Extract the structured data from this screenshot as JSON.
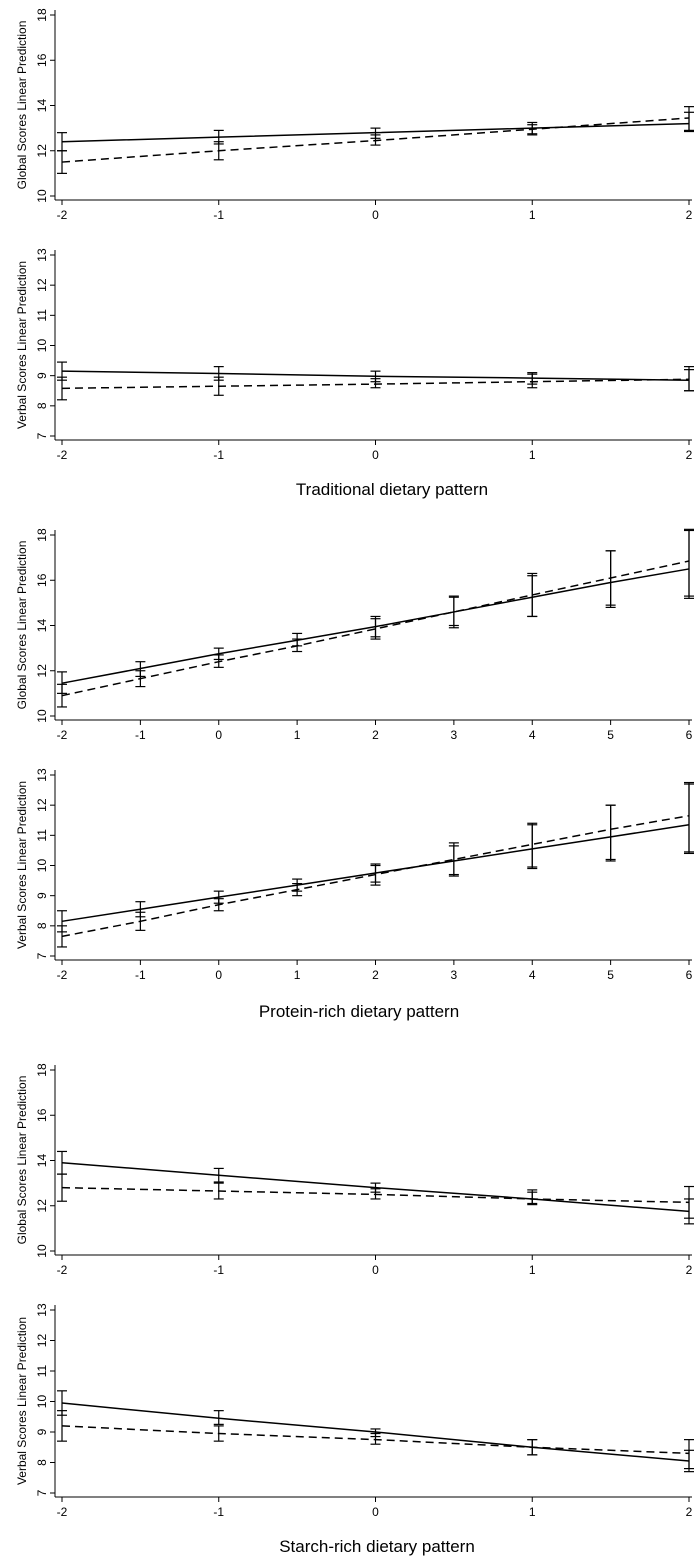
{
  "sections": [
    {
      "title": "Traditional dietary pattern",
      "plots": [
        {
          "ylabel": "Global Scores Linear Prediction",
          "xticks": [
            -2,
            -1,
            0,
            1,
            2
          ],
          "yticks": [
            10,
            12,
            14,
            16,
            18
          ]
        },
        {
          "ylabel": "Verbal Scores Linear Prediction",
          "xticks": [
            -2,
            -1,
            0,
            1,
            2
          ],
          "yticks": [
            7,
            8,
            9,
            10,
            11,
            12,
            13
          ]
        }
      ]
    },
    {
      "title": "Protein-rich dietary pattern",
      "plots": [
        {
          "ylabel": "Global Scores Linear Prediction",
          "xticks": [
            -2,
            -1,
            0,
            1,
            2,
            3,
            4,
            5,
            6
          ],
          "yticks": [
            10,
            12,
            14,
            16,
            18
          ]
        },
        {
          "ylabel": "Verbal Scores Linear Prediction",
          "xticks": [
            -2,
            -1,
            0,
            1,
            2,
            3,
            4,
            5,
            6
          ],
          "yticks": [
            7,
            8,
            9,
            10,
            11,
            12,
            13
          ]
        }
      ]
    },
    {
      "title": "Starch-rich dietary pattern",
      "plots": [
        {
          "ylabel": "Global Scores Linear Prediction",
          "xticks": [
            -2,
            -1,
            0,
            1,
            2
          ],
          "yticks": [
            10,
            12,
            14,
            16,
            18
          ]
        },
        {
          "ylabel": "Verbal Scores Linear Prediction",
          "xticks": [
            -2,
            -1,
            0,
            1,
            2
          ],
          "yticks": [
            7,
            8,
            9,
            10,
            11,
            12,
            13
          ]
        }
      ]
    }
  ],
  "chart_data": [
    {
      "type": "line",
      "xlabel": "",
      "ylabel": "Global Scores Linear Prediction",
      "xlim": [
        -2,
        2
      ],
      "ylim": [
        10,
        18
      ],
      "series": [
        {
          "style": "solid",
          "x": [
            -2,
            -1,
            0,
            1,
            2
          ],
          "y": [
            12.4,
            12.6,
            12.8,
            13.0,
            13.2
          ],
          "ci_low": [
            12.0,
            12.3,
            12.55,
            12.75,
            12.85
          ],
          "ci_high": [
            12.8,
            12.9,
            13.0,
            13.25,
            13.7
          ]
        },
        {
          "style": "dashed",
          "x": [
            -2,
            -1,
            0,
            1,
            2
          ],
          "y": [
            11.5,
            12.0,
            12.45,
            12.95,
            13.45
          ],
          "ci_low": [
            11.0,
            11.6,
            12.25,
            12.7,
            12.9
          ],
          "ci_high": [
            12.0,
            12.4,
            12.7,
            13.15,
            13.95
          ]
        }
      ]
    },
    {
      "type": "line",
      "xlabel": "Traditional dietary pattern",
      "ylabel": "Verbal Scores Linear Prediction",
      "xlim": [
        -2,
        2
      ],
      "ylim": [
        7,
        13
      ],
      "series": [
        {
          "style": "solid",
          "x": [
            -2,
            -1,
            0,
            1,
            2
          ],
          "y": [
            9.15,
            9.07,
            8.98,
            8.92,
            8.85
          ],
          "ci_low": [
            8.85,
            8.85,
            8.8,
            8.72,
            8.5
          ],
          "ci_high": [
            9.45,
            9.3,
            9.15,
            9.1,
            9.2
          ]
        },
        {
          "style": "dashed",
          "x": [
            -2,
            -1,
            0,
            1,
            2
          ],
          "y": [
            8.58,
            8.65,
            8.72,
            8.8,
            8.88
          ],
          "ci_low": [
            8.2,
            8.35,
            8.6,
            8.6,
            8.5
          ],
          "ci_high": [
            8.95,
            8.95,
            8.9,
            9.05,
            9.3
          ]
        }
      ]
    },
    {
      "type": "line",
      "xlabel": "",
      "ylabel": "Global Scores Linear Prediction",
      "xlim": [
        -2,
        6
      ],
      "ylim": [
        10,
        18
      ],
      "series": [
        {
          "style": "solid",
          "x": [
            -2,
            -1,
            0,
            1,
            2,
            3,
            4,
            5,
            6
          ],
          "y": [
            11.45,
            12.1,
            12.75,
            13.35,
            13.95,
            14.6,
            15.25,
            15.9,
            16.5
          ],
          "ci_low": [
            11.0,
            11.75,
            12.5,
            13.1,
            13.5,
            14.0,
            14.4,
            14.9,
            15.3
          ],
          "ci_high": [
            11.95,
            12.4,
            13.0,
            13.65,
            14.4,
            15.25,
            16.2,
            17.3,
            18.25
          ]
        },
        {
          "style": "dashed",
          "x": [
            -2,
            -1,
            0,
            1,
            2,
            3,
            4,
            5,
            6
          ],
          "y": [
            10.9,
            11.65,
            12.4,
            13.1,
            13.85,
            14.6,
            15.35,
            16.1,
            16.85
          ],
          "ci_low": [
            10.4,
            11.3,
            12.15,
            12.85,
            13.4,
            13.9,
            14.4,
            14.8,
            15.2
          ],
          "ci_high": [
            11.4,
            12.0,
            12.7,
            13.4,
            14.3,
            15.3,
            16.3,
            17.3,
            18.2
          ]
        }
      ]
    },
    {
      "type": "line",
      "xlabel": "Protein-rich dietary pattern",
      "ylabel": "Verbal Scores Linear Prediction",
      "xlim": [
        -2,
        6
      ],
      "ylim": [
        7,
        13
      ],
      "series": [
        {
          "style": "solid",
          "x": [
            -2,
            -1,
            0,
            1,
            2,
            3,
            4,
            5,
            6
          ],
          "y": [
            8.15,
            8.55,
            8.95,
            9.35,
            9.75,
            10.15,
            10.55,
            10.95,
            11.35
          ],
          "ci_low": [
            7.8,
            8.3,
            8.75,
            9.15,
            9.45,
            9.7,
            9.95,
            10.2,
            10.4
          ],
          "ci_high": [
            8.5,
            8.8,
            9.15,
            9.55,
            10.05,
            10.65,
            11.35,
            12.0,
            12.7
          ]
        },
        {
          "style": "dashed",
          "x": [
            -2,
            -1,
            0,
            1,
            2,
            3,
            4,
            5,
            6
          ],
          "y": [
            7.65,
            8.15,
            8.7,
            9.2,
            9.7,
            10.2,
            10.7,
            11.2,
            11.65
          ],
          "ci_low": [
            7.3,
            7.85,
            8.5,
            9.0,
            9.35,
            9.65,
            9.9,
            10.15,
            10.45
          ],
          "ci_high": [
            8.0,
            8.45,
            8.9,
            9.4,
            10.0,
            10.75,
            11.4,
            12.0,
            12.75
          ]
        }
      ]
    },
    {
      "type": "line",
      "xlabel": "",
      "ylabel": "Global Scores Linear Prediction",
      "xlim": [
        -2,
        2
      ],
      "ylim": [
        10,
        18
      ],
      "series": [
        {
          "style": "solid",
          "x": [
            -2,
            -1,
            0,
            1,
            2
          ],
          "y": [
            13.9,
            13.35,
            12.8,
            12.3,
            11.75
          ],
          "ci_low": [
            13.4,
            13.05,
            12.6,
            12.05,
            11.2
          ],
          "ci_high": [
            14.4,
            13.65,
            13.0,
            12.6,
            12.3
          ]
        },
        {
          "style": "dashed",
          "x": [
            -2,
            -1,
            0,
            1,
            2
          ],
          "y": [
            12.8,
            12.65,
            12.5,
            12.3,
            12.15
          ],
          "ci_low": [
            12.2,
            12.3,
            12.3,
            12.1,
            11.45
          ],
          "ci_high": [
            13.4,
            13.0,
            12.75,
            12.7,
            12.85
          ]
        }
      ]
    },
    {
      "type": "line",
      "xlabel": "Starch-rich dietary pattern",
      "ylabel": "Verbal Scores Linear Prediction",
      "xlim": [
        -2,
        2
      ],
      "ylim": [
        7,
        13
      ],
      "series": [
        {
          "style": "solid",
          "x": [
            -2,
            -1,
            0,
            1,
            2
          ],
          "y": [
            9.95,
            9.45,
            9.0,
            8.5,
            8.05
          ],
          "ci_low": [
            9.55,
            9.25,
            8.85,
            8.25,
            7.7
          ],
          "ci_high": [
            10.35,
            9.7,
            9.1,
            8.75,
            8.4
          ]
        },
        {
          "style": "dashed",
          "x": [
            -2,
            -1,
            0,
            1,
            2
          ],
          "y": [
            9.2,
            8.95,
            8.75,
            8.5,
            8.3
          ],
          "ci_low": [
            8.7,
            8.7,
            8.6,
            8.25,
            7.8
          ],
          "ci_high": [
            9.7,
            9.2,
            8.95,
            8.75,
            8.75
          ]
        }
      ]
    }
  ]
}
